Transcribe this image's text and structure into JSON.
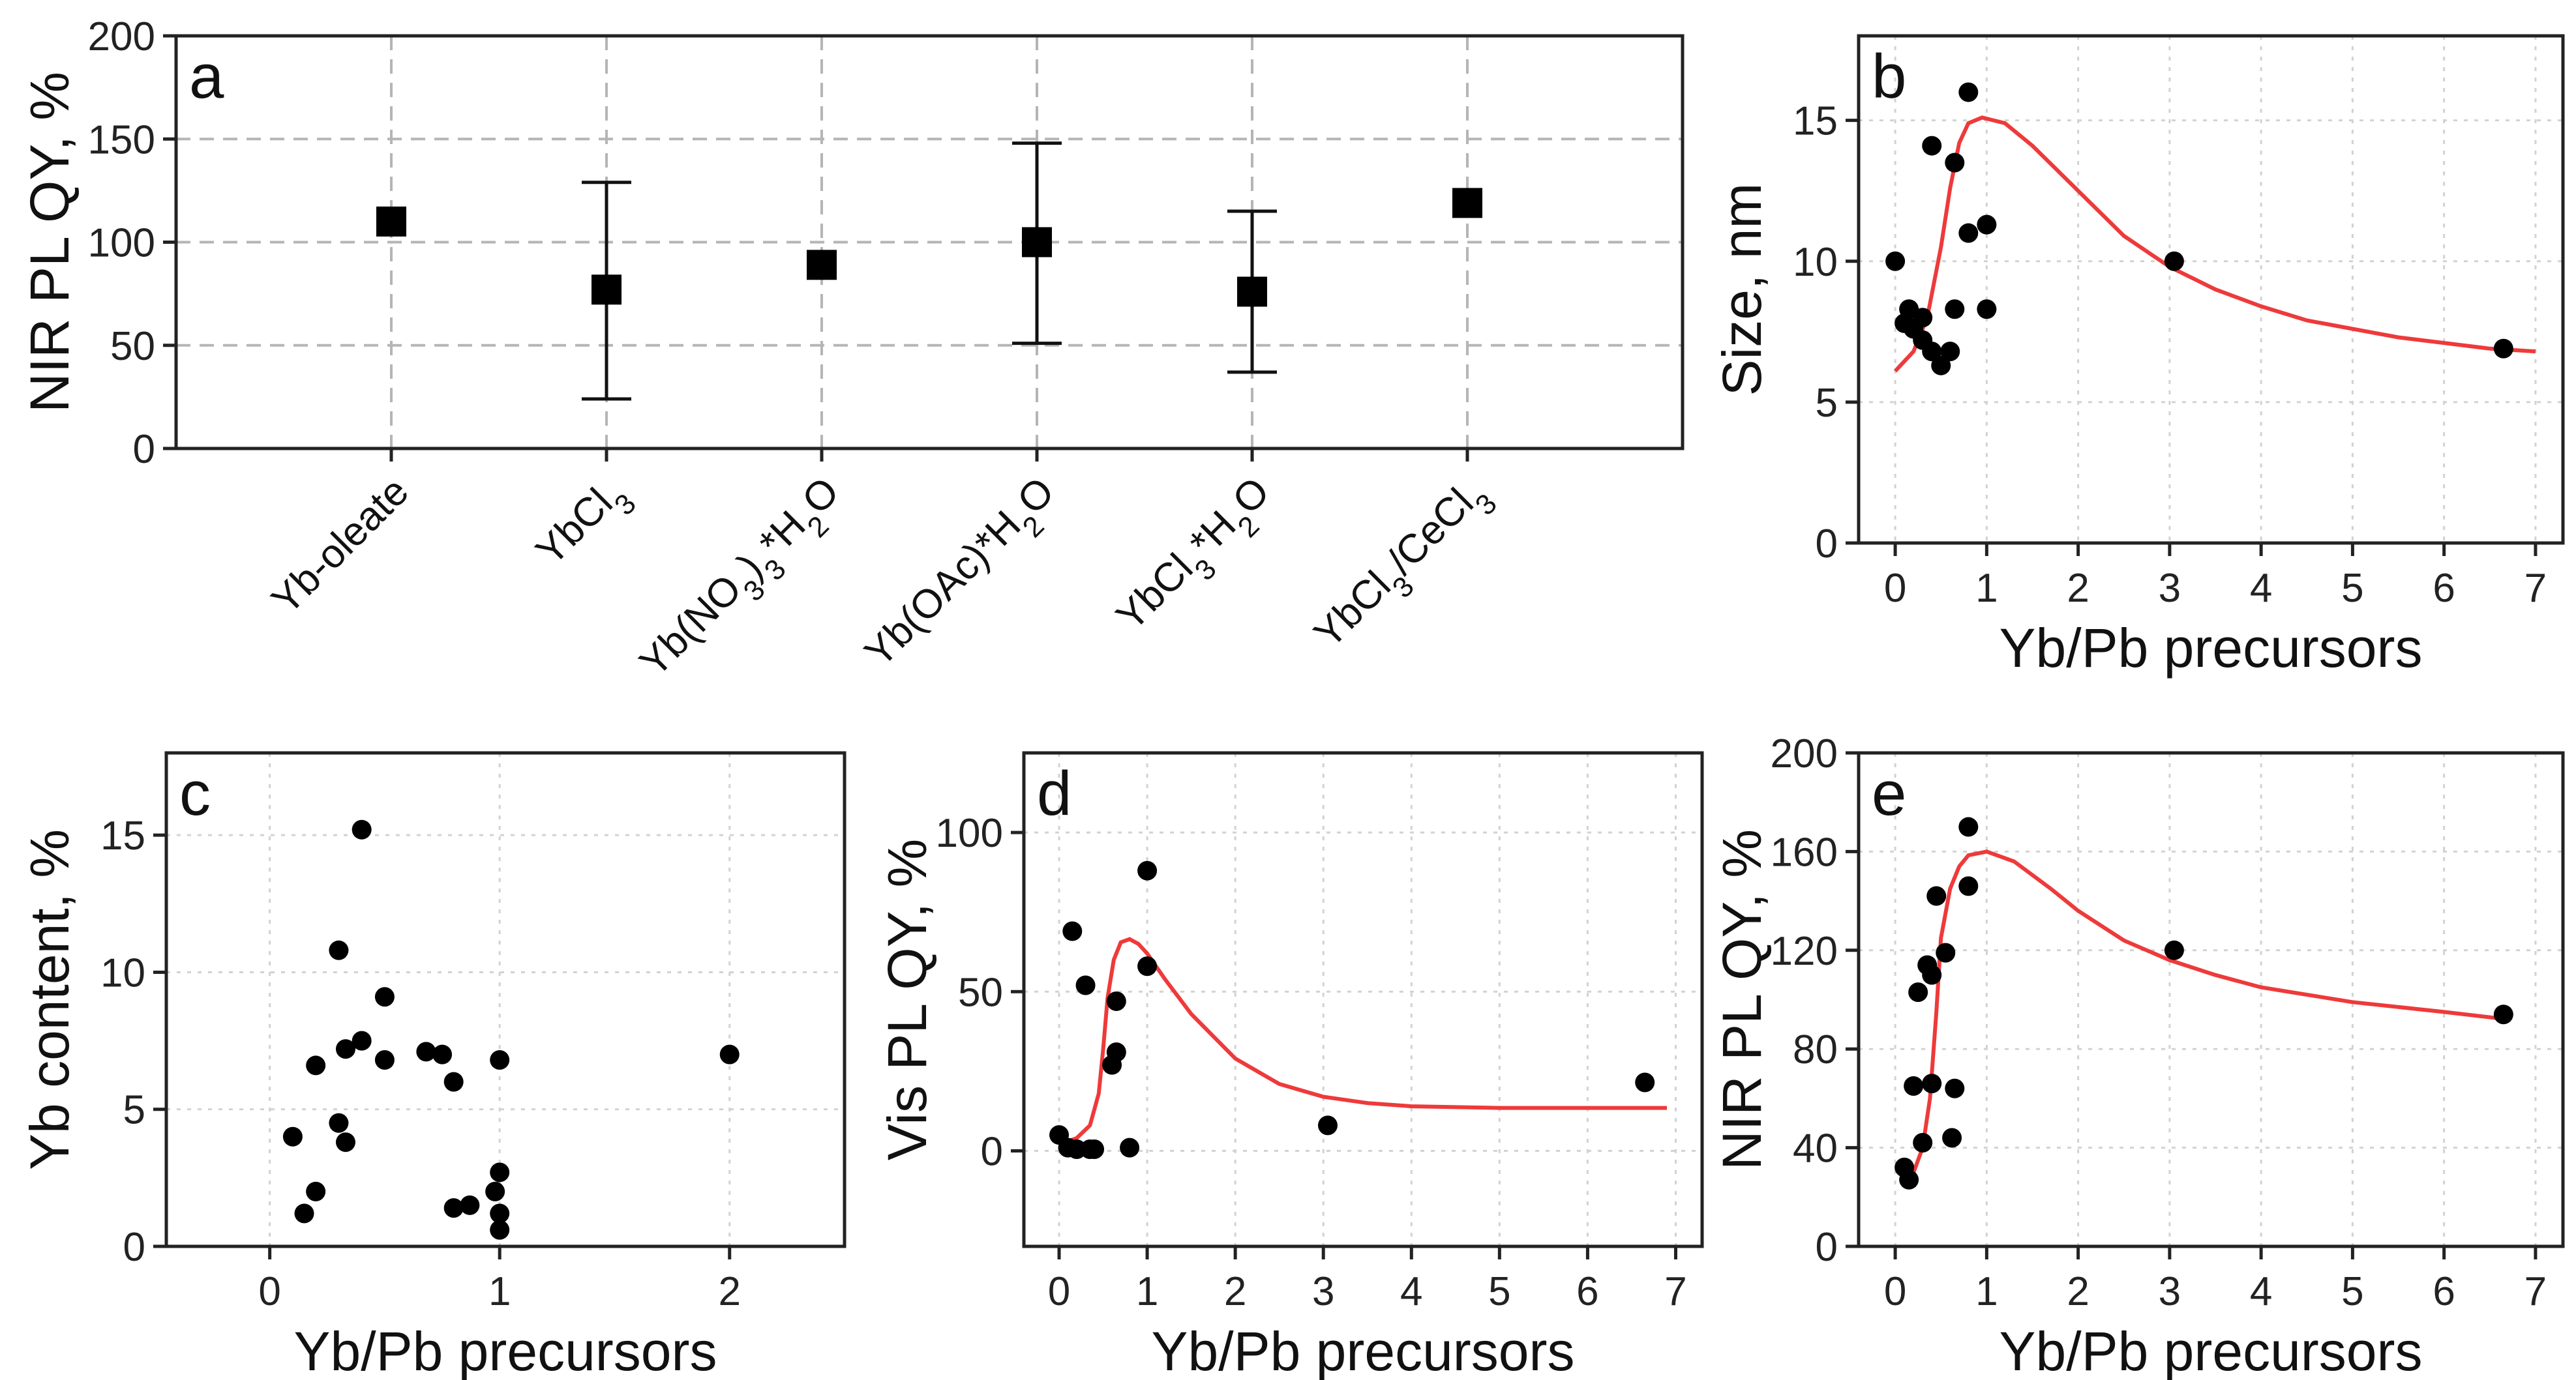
{
  "colors": {
    "points": "#000000",
    "fit": "#ee3a3a",
    "frame": "#222222"
  },
  "chart_data": [
    {
      "id": "a",
      "type": "scatter",
      "panel_label": "a",
      "ylabel": "NIR PL QY, %",
      "xlabel": "",
      "ylim": [
        0,
        200
      ],
      "yticks": [
        0,
        50,
        100,
        150,
        200
      ],
      "categories": [
        {
          "parts": [
            {
              "t": "Yb-oleate",
              "s": 0
            }
          ]
        },
        {
          "parts": [
            {
              "t": "YbCl",
              "s": 0
            },
            {
              "t": "3",
              "s": -1
            }
          ]
        },
        {
          "parts": [
            {
              "t": "Yb(NO",
              "s": 0
            },
            {
              "t": "3",
              "s": -1
            },
            {
              "t": ")",
              "s": 0
            },
            {
              "t": "3",
              "s": -1
            },
            {
              "t": "*H",
              "s": 0
            },
            {
              "t": "2",
              "s": -1
            },
            {
              "t": "O",
              "s": 0
            }
          ]
        },
        {
          "parts": [
            {
              "t": "Yb(OAc)*H",
              "s": 0
            },
            {
              "t": "2",
              "s": -1
            },
            {
              "t": "O",
              "s": 0
            }
          ]
        },
        {
          "parts": [
            {
              "t": "YbCl",
              "s": 0
            },
            {
              "t": "3",
              "s": -1
            },
            {
              "t": "*H",
              "s": 0
            },
            {
              "t": "2",
              "s": -1
            },
            {
              "t": "O",
              "s": 0
            }
          ]
        },
        {
          "parts": [
            {
              "t": "YbCl",
              "s": 0
            },
            {
              "t": "3",
              "s": -1
            },
            {
              "t": "/CeCl",
              "s": 0
            },
            {
              "t": "3",
              "s": -1
            }
          ]
        }
      ],
      "values": [
        110,
        77,
        89,
        100,
        76,
        119
      ],
      "err_low": [
        null,
        24,
        null,
        51,
        37,
        null
      ],
      "err_high": [
        null,
        129,
        null,
        148,
        115,
        null
      ]
    },
    {
      "id": "b",
      "type": "scatter",
      "panel_label": "b",
      "xlabel": "Yb/Pb precursors",
      "ylabel": "Size, nm",
      "xlim": [
        -0.4,
        7.3
      ],
      "ylim": [
        0,
        18
      ],
      "xticks": [
        0,
        1,
        2,
        3,
        4,
        5,
        6,
        7
      ],
      "yticks": [
        0,
        5,
        10,
        15
      ],
      "points": [
        [
          0.0,
          10.0
        ],
        [
          0.1,
          7.8
        ],
        [
          0.15,
          8.3
        ],
        [
          0.2,
          7.6
        ],
        [
          0.3,
          8.0
        ],
        [
          0.3,
          7.2
        ],
        [
          0.4,
          6.8
        ],
        [
          0.4,
          14.1
        ],
        [
          0.5,
          6.3
        ],
        [
          0.6,
          6.8
        ],
        [
          0.65,
          8.3
        ],
        [
          0.65,
          13.5
        ],
        [
          0.8,
          16.0
        ],
        [
          0.8,
          11.0
        ],
        [
          1.0,
          11.3
        ],
        [
          1.0,
          8.3
        ],
        [
          3.05,
          10.0
        ],
        [
          6.65,
          6.9
        ]
      ],
      "fit": [
        [
          0.0,
          6.1
        ],
        [
          0.2,
          6.8
        ],
        [
          0.35,
          8.0
        ],
        [
          0.5,
          10.5
        ],
        [
          0.6,
          12.6
        ],
        [
          0.7,
          14.2
        ],
        [
          0.8,
          14.9
        ],
        [
          0.95,
          15.1
        ],
        [
          1.2,
          14.9
        ],
        [
          1.5,
          14.1
        ],
        [
          2.0,
          12.5
        ],
        [
          2.5,
          10.9
        ],
        [
          3.0,
          9.8
        ],
        [
          3.5,
          9.0
        ],
        [
          4.0,
          8.4
        ],
        [
          4.5,
          7.9
        ],
        [
          5.0,
          7.6
        ],
        [
          5.5,
          7.3
        ],
        [
          6.0,
          7.1
        ],
        [
          6.5,
          6.9
        ],
        [
          7.0,
          6.8
        ]
      ]
    },
    {
      "id": "c",
      "type": "scatter",
      "panel_label": "c",
      "xlabel": "Yb/Pb precursors",
      "ylabel": "Yb content, %",
      "xlim": [
        -0.45,
        2.5
      ],
      "ylim": [
        0,
        18
      ],
      "xticks": [
        0,
        1,
        2
      ],
      "yticks": [
        0,
        5,
        10,
        15
      ],
      "points": [
        [
          0.1,
          4.0
        ],
        [
          0.15,
          1.2
        ],
        [
          0.2,
          2.0
        ],
        [
          0.2,
          6.6
        ],
        [
          0.3,
          10.8
        ],
        [
          0.3,
          4.5
        ],
        [
          0.33,
          3.8
        ],
        [
          0.33,
          7.2
        ],
        [
          0.4,
          15.2
        ],
        [
          0.4,
          7.5
        ],
        [
          0.5,
          9.1
        ],
        [
          0.5,
          6.8
        ],
        [
          0.68,
          7.1
        ],
        [
          0.75,
          7.0
        ],
        [
          0.8,
          6.0
        ],
        [
          0.8,
          1.4
        ],
        [
          0.87,
          1.5
        ],
        [
          1.0,
          6.8
        ],
        [
          1.0,
          2.7
        ],
        [
          0.98,
          2.0
        ],
        [
          1.0,
          1.2
        ],
        [
          1.0,
          0.6
        ],
        [
          2.0,
          7.0
        ]
      ]
    },
    {
      "id": "d",
      "type": "scatter",
      "panel_label": "d",
      "xlabel": "Yb/Pb precursors",
      "ylabel": "Vis PL QY, %",
      "xlim": [
        -0.4,
        7.3
      ],
      "ylim": [
        -30,
        125
      ],
      "xticks": [
        0,
        1,
        2,
        3,
        4,
        5,
        6,
        7
      ],
      "yticks": [
        0,
        50,
        100
      ],
      "points": [
        [
          0.0,
          5.0
        ],
        [
          0.1,
          1.0
        ],
        [
          0.15,
          69.0
        ],
        [
          0.2,
          0.5
        ],
        [
          0.3,
          52.0
        ],
        [
          0.35,
          0.5
        ],
        [
          0.4,
          0.5
        ],
        [
          0.6,
          27.0
        ],
        [
          0.65,
          31.0
        ],
        [
          0.65,
          47.0
        ],
        [
          0.8,
          1.0
        ],
        [
          1.0,
          88.0
        ],
        [
          1.0,
          58.0
        ],
        [
          3.05,
          8.0
        ],
        [
          6.65,
          21.5
        ]
      ],
      "fit": [
        [
          0.0,
          2.0
        ],
        [
          0.2,
          4.0
        ],
        [
          0.35,
          8.0
        ],
        [
          0.45,
          18.0
        ],
        [
          0.5,
          32.0
        ],
        [
          0.55,
          48.0
        ],
        [
          0.62,
          60.0
        ],
        [
          0.7,
          65.5
        ],
        [
          0.8,
          66.5
        ],
        [
          0.9,
          65.0
        ],
        [
          1.0,
          62.0
        ],
        [
          1.2,
          54.0
        ],
        [
          1.5,
          43.0
        ],
        [
          2.0,
          29.0
        ],
        [
          2.5,
          21.0
        ],
        [
          3.0,
          17.0
        ],
        [
          3.5,
          15.0
        ],
        [
          4.0,
          14.0
        ],
        [
          5.0,
          13.5
        ],
        [
          6.0,
          13.5
        ],
        [
          6.9,
          13.5
        ]
      ]
    },
    {
      "id": "e",
      "type": "scatter",
      "panel_label": "e",
      "xlabel": "Yb/Pb precursors",
      "ylabel": "NIR PL QY, %",
      "xlim": [
        -0.4,
        7.3
      ],
      "ylim": [
        0,
        200
      ],
      "xticks": [
        0,
        1,
        2,
        3,
        4,
        5,
        6,
        7
      ],
      "yticks": [
        0,
        40,
        80,
        120,
        160,
        200
      ],
      "points": [
        [
          0.1,
          32.0
        ],
        [
          0.15,
          27.0
        ],
        [
          0.2,
          65.0
        ],
        [
          0.25,
          103.0
        ],
        [
          0.3,
          42.0
        ],
        [
          0.35,
          114.0
        ],
        [
          0.4,
          110.0
        ],
        [
          0.4,
          66.0
        ],
        [
          0.45,
          142.0
        ],
        [
          0.55,
          119.0
        ],
        [
          0.65,
          64.0
        ],
        [
          0.62,
          44.0
        ],
        [
          0.8,
          170.0
        ],
        [
          0.8,
          146.0
        ],
        [
          3.05,
          120.0
        ],
        [
          6.65,
          94.0
        ]
      ],
      "fit": [
        [
          0.1,
          25.0
        ],
        [
          0.2,
          30.0
        ],
        [
          0.3,
          40.0
        ],
        [
          0.38,
          60.0
        ],
        [
          0.45,
          95.0
        ],
        [
          0.5,
          125.0
        ],
        [
          0.6,
          145.0
        ],
        [
          0.7,
          154.0
        ],
        [
          0.8,
          158.5
        ],
        [
          1.0,
          160.0
        ],
        [
          1.3,
          156.0
        ],
        [
          1.7,
          145.0
        ],
        [
          2.0,
          136.0
        ],
        [
          2.5,
          124.0
        ],
        [
          3.0,
          116.0
        ],
        [
          3.5,
          110.0
        ],
        [
          4.0,
          105.0
        ],
        [
          5.0,
          99.0
        ],
        [
          6.0,
          95.0
        ],
        [
          6.7,
          92.0
        ]
      ]
    }
  ]
}
